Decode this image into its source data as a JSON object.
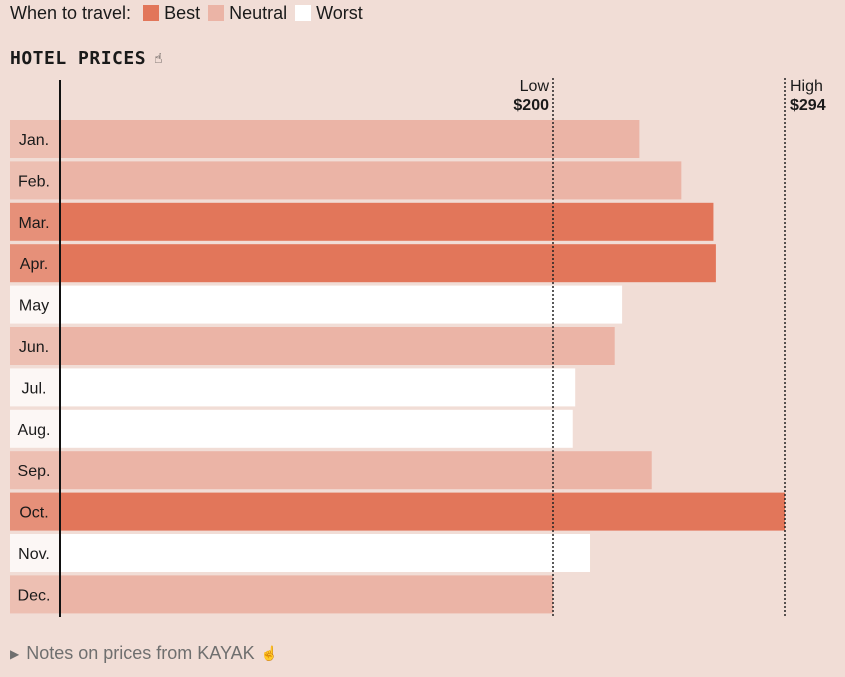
{
  "legend": {
    "title": "When to travel:",
    "items": [
      {
        "label": "Best",
        "color": "#e2765a"
      },
      {
        "label": "Neutral",
        "color": "#ebb4a6"
      },
      {
        "label": "Worst",
        "color": "#ffffff"
      }
    ]
  },
  "title": "HOTEL PRICES",
  "icons": {
    "title_icon": "pointer-hand-icon",
    "footer_icon": "pointer-hand-icon",
    "footer_caret": "triangle-right-icon"
  },
  "footer": {
    "text": "Notes on prices from KAYAK"
  },
  "chart_data": {
    "type": "bar",
    "orientation": "horizontal",
    "categories": [
      "Jan.",
      "Feb.",
      "Mar.",
      "Apr.",
      "May",
      "Jun.",
      "Jul.",
      "Aug.",
      "Sep.",
      "Oct.",
      "Nov.",
      "Dec."
    ],
    "values": [
      235,
      252,
      265,
      266,
      228,
      225,
      209,
      208,
      240,
      294,
      215,
      200
    ],
    "ratings": [
      "Neutral",
      "Neutral",
      "Best",
      "Best",
      "Worst",
      "Neutral",
      "Worst",
      "Worst",
      "Neutral",
      "Best",
      "Worst",
      "Neutral"
    ],
    "reference_lines": [
      {
        "label": "Low",
        "value_label": "$200",
        "value": 200
      },
      {
        "label": "High",
        "value_label": "$294",
        "value": 294
      }
    ]
  }
}
